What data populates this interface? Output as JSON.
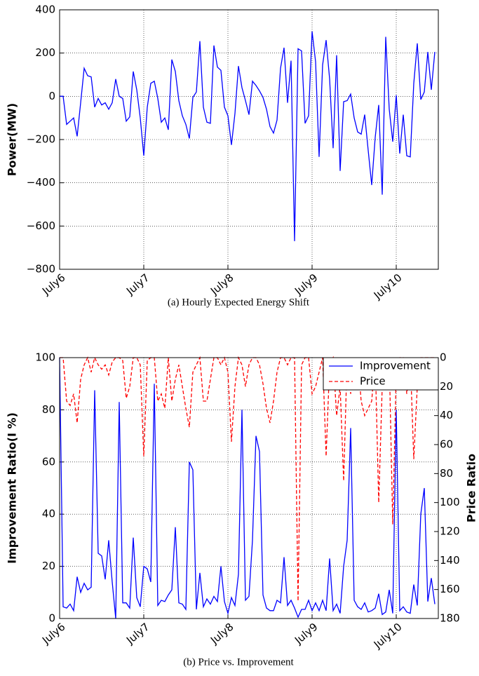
{
  "chart_data": [
    {
      "type": "line",
      "caption": "(a) Hourly Expected Energy Shift",
      "ylabel": "Power(MW)",
      "x": [
        0,
        1,
        2,
        3,
        4,
        5,
        6,
        7,
        8,
        9,
        10,
        11,
        12,
        13,
        14,
        15,
        16,
        17,
        18,
        19,
        20,
        21,
        22,
        23,
        24,
        25,
        26,
        27,
        28,
        29,
        30,
        31,
        32,
        33,
        34,
        35,
        36,
        37,
        38,
        39,
        40,
        41,
        42,
        43,
        44,
        45,
        46,
        47,
        48,
        49,
        50,
        51,
        52,
        53,
        54,
        55,
        56,
        57,
        58,
        59,
        60,
        61,
        62,
        63,
        64,
        65,
        66,
        67,
        68,
        69,
        70,
        71,
        72,
        73,
        74,
        75,
        76,
        77,
        78,
        79,
        80,
        81,
        82,
        83,
        84,
        85,
        86,
        87,
        88,
        89,
        90,
        91,
        92,
        93,
        94,
        95,
        96,
        97,
        98,
        99,
        100,
        101,
        102,
        103,
        104,
        105,
        106,
        107
      ],
      "series": [
        {
          "name": "Power",
          "color": "#0000ff",
          "values": [
            0,
            0,
            -130,
            -115,
            -100,
            -185,
            -30,
            130,
            95,
            90,
            -50,
            -10,
            -40,
            -30,
            -60,
            -30,
            80,
            0,
            -10,
            -115,
            -95,
            115,
            30,
            -100,
            -275,
            -50,
            60,
            70,
            -10,
            -120,
            -100,
            -155,
            170,
            115,
            -20,
            -90,
            -130,
            -195,
            -5,
            20,
            255,
            -50,
            -120,
            -125,
            235,
            135,
            120,
            -50,
            -90,
            -225,
            -80,
            140,
            40,
            -20,
            -85,
            70,
            50,
            25,
            -5,
            -60,
            -140,
            -170,
            -110,
            130,
            225,
            -30,
            165,
            -670,
            220,
            210,
            -125,
            -90,
            300,
            160,
            -280,
            145,
            260,
            80,
            -240,
            190,
            -345,
            -25,
            -20,
            10,
            -100,
            -165,
            -175,
            -85,
            -250,
            -410,
            -190,
            -40,
            -455,
            275,
            -60,
            -210,
            5,
            -265,
            -85,
            -275,
            -280,
            60,
            245,
            -15,
            20,
            205,
            30,
            205
          ]
        }
      ],
      "xlim": [
        0,
        108
      ],
      "xticks": [
        {
          "value": 0,
          "label": "July6"
        },
        {
          "value": 24,
          "label": "July7"
        },
        {
          "value": 48,
          "label": "July8"
        },
        {
          "value": 72,
          "label": "July9"
        },
        {
          "value": 96,
          "label": "July10"
        }
      ],
      "ylim": [
        -800,
        400
      ],
      "yticks": [
        {
          "value": -800,
          "label": "−800"
        },
        {
          "value": -600,
          "label": "−600"
        },
        {
          "value": -400,
          "label": "−400"
        },
        {
          "value": -200,
          "label": "−200"
        },
        0,
        200,
        400
      ],
      "grid": true
    },
    {
      "type": "line",
      "caption": "(b) Price vs. Improvement",
      "ylabel": "Improvement Ratio(I %)",
      "y2label": "Price Ratio",
      "x": [
        0,
        1,
        2,
        3,
        4,
        5,
        6,
        7,
        8,
        9,
        10,
        11,
        12,
        13,
        14,
        15,
        16,
        17,
        18,
        19,
        20,
        21,
        22,
        23,
        24,
        25,
        26,
        27,
        28,
        29,
        30,
        31,
        32,
        33,
        34,
        35,
        36,
        37,
        38,
        39,
        40,
        41,
        42,
        43,
        44,
        45,
        46,
        47,
        48,
        49,
        50,
        51,
        52,
        53,
        54,
        55,
        56,
        57,
        58,
        59,
        60,
        61,
        62,
        63,
        64,
        65,
        66,
        67,
        68,
        69,
        70,
        71,
        72,
        73,
        74,
        75,
        76,
        77,
        78,
        79,
        80,
        81,
        82,
        83,
        84,
        85,
        86,
        87,
        88,
        89,
        90,
        91,
        92,
        93,
        94,
        95,
        96,
        97,
        98,
        99,
        100,
        101,
        102,
        103,
        104,
        105,
        106,
        107
      ],
      "series": [
        {
          "name": "Improvement",
          "color": "#0000ff",
          "dash": "solid",
          "values": [
            100,
            4.5,
            4,
            5.5,
            3,
            16,
            10,
            13.5,
            11,
            12,
            87.5,
            25,
            24,
            15,
            30,
            14,
            0,
            83,
            6,
            6,
            4,
            31,
            8,
            4.5,
            20,
            19,
            14,
            90,
            5,
            7,
            6.5,
            9,
            11,
            35,
            6,
            5.5,
            3.5,
            60,
            57,
            3.5,
            17.5,
            4.5,
            7.5,
            5.5,
            8.5,
            6.5,
            20,
            6.5,
            2,
            8,
            5,
            17,
            80,
            7,
            8.5,
            30,
            70,
            64,
            9,
            4,
            3,
            3,
            7,
            6,
            23.5,
            5,
            7,
            4,
            0.5,
            3.5,
            3.5,
            7,
            3,
            6,
            3,
            7,
            3,
            23,
            3,
            5.5,
            2,
            20,
            30,
            73,
            7,
            4.5,
            3.5,
            6,
            2.5,
            3,
            4,
            9.5,
            1.5,
            2.5,
            11,
            2,
            80,
            3,
            4.5,
            2.5,
            2,
            13,
            5,
            40,
            50,
            6.5,
            15.5,
            5.5
          ]
        },
        {
          "name": "Price",
          "color": "#ff0000",
          "dash": "dashed",
          "axis": "y2",
          "values": [
            0,
            0,
            30,
            33,
            25,
            45,
            15,
            5,
            0,
            10,
            0,
            5,
            8,
            5,
            12,
            3,
            0,
            0,
            2,
            28,
            20,
            0,
            0,
            5,
            68,
            2,
            0,
            0,
            30,
            25,
            35,
            0,
            30,
            15,
            5,
            20,
            35,
            48,
            10,
            5,
            0,
            30,
            30,
            15,
            0,
            0,
            5,
            0,
            10,
            58,
            20,
            0,
            5,
            20,
            5,
            0,
            0,
            5,
            18,
            35,
            45,
            30,
            10,
            0,
            0,
            5,
            0,
            0,
            168,
            5,
            0,
            0,
            25,
            20,
            10,
            0,
            68,
            5,
            0,
            40,
            20,
            85,
            0,
            25,
            5,
            0,
            30,
            40,
            35,
            30,
            0,
            100,
            20,
            10,
            0,
            115,
            10,
            0,
            0,
            25,
            0,
            70,
            20,
            0,
            0,
            0,
            0,
            0
          ]
        }
      ],
      "xlim": [
        0,
        108
      ],
      "xticks": [
        {
          "value": 0,
          "label": "July6"
        },
        {
          "value": 24,
          "label": "July7"
        },
        {
          "value": 48,
          "label": "July8"
        },
        {
          "value": 72,
          "label": "July9"
        },
        {
          "value": 96,
          "label": "July10"
        }
      ],
      "ylim": [
        0,
        100
      ],
      "yticks": [
        0,
        20,
        40,
        60,
        80,
        100
      ],
      "y2lim": [
        180,
        0
      ],
      "y2ticks": [
        0,
        20,
        40,
        60,
        80,
        100,
        120,
        140,
        160,
        180
      ],
      "grid": true,
      "legend": "upper right"
    }
  ]
}
